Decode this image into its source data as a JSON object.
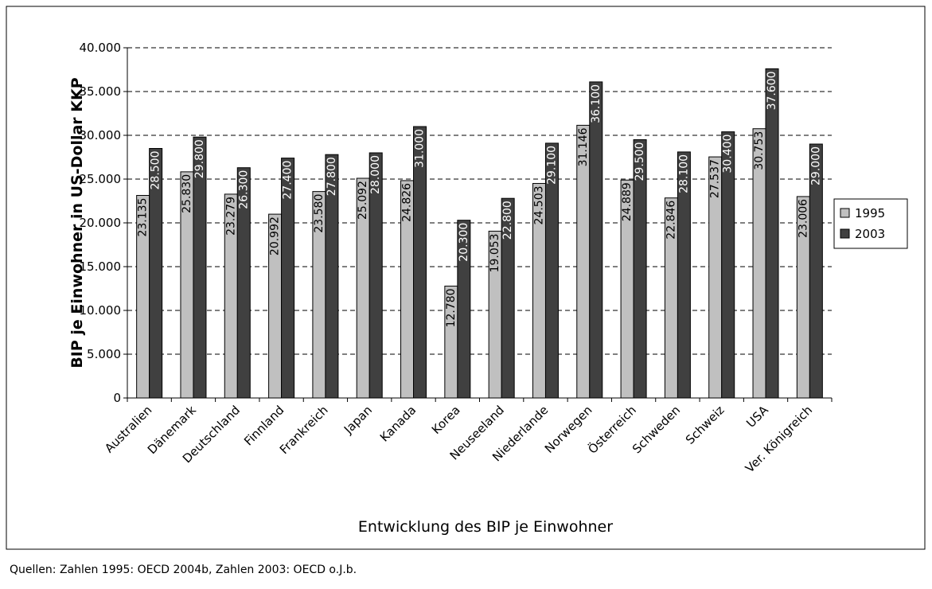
{
  "chart_data": {
    "type": "bar",
    "x_label": "Entwicklung des BIP je Einwohner",
    "y_label": "BIP je Einwohner in US-Dollar KKP",
    "source": "Quellen: Zahlen 1995: OECD 2004b, Zahlen 2003: OECD o.J.b.",
    "categories": [
      "Australien",
      "Dänemark",
      "Deutschland",
      "Finnland",
      "Frankreich",
      "Japan",
      "Kanada",
      "Korea",
      "Neuseeland",
      "Niederlande",
      "Norwegen",
      "Österreich",
      "Schweden",
      "Schweiz",
      "USA",
      "Ver. Königreich"
    ],
    "series": [
      {
        "name": "1995",
        "color": "#c0c0c0",
        "values": [
          23135,
          25830,
          23279,
          20992,
          23580,
          25092,
          24826,
          12780,
          19053,
          24503,
          31146,
          24889,
          22846,
          27537,
          30753,
          23006
        ],
        "value_labels": [
          "23.135",
          "25.830",
          "23.279",
          "20.992",
          "23.580",
          "25.092",
          "24.826",
          "12.780",
          "19.053",
          "24.503",
          "31.146",
          "24.889",
          "22.846",
          "27.537",
          "30.753",
          "23.006"
        ]
      },
      {
        "name": "2003",
        "color": "#404040",
        "values": [
          28500,
          29800,
          26300,
          27400,
          27800,
          28000,
          31000,
          20300,
          22800,
          29100,
          36100,
          29500,
          28100,
          30400,
          37600,
          29000
        ],
        "value_labels": [
          "28.500",
          "29.800",
          "26.300",
          "27.400",
          "27.800",
          "28.000",
          "31.000",
          "20.300",
          "22.800",
          "29.100",
          "36.100",
          "29.500",
          "28.100",
          "30.400",
          "37.600",
          "29.000"
        ]
      }
    ],
    "ylim": [
      0,
      40000
    ],
    "yticks": [
      0,
      {
        "value": 5000,
        "label": "5.000"
      },
      {
        "value": 10000,
        "label": "10.000"
      },
      {
        "value": 15000,
        "label": "15.000"
      },
      {
        "value": 20000,
        "label": "20.000"
      },
      {
        "value": 25000,
        "label": "25.000"
      },
      {
        "value": 30000,
        "label": "30.000"
      },
      {
        "value": 35000,
        "label": "35.000"
      },
      {
        "value": 40000,
        "label": "40.000"
      }
    ],
    "grid": true,
    "legend": "right"
  }
}
